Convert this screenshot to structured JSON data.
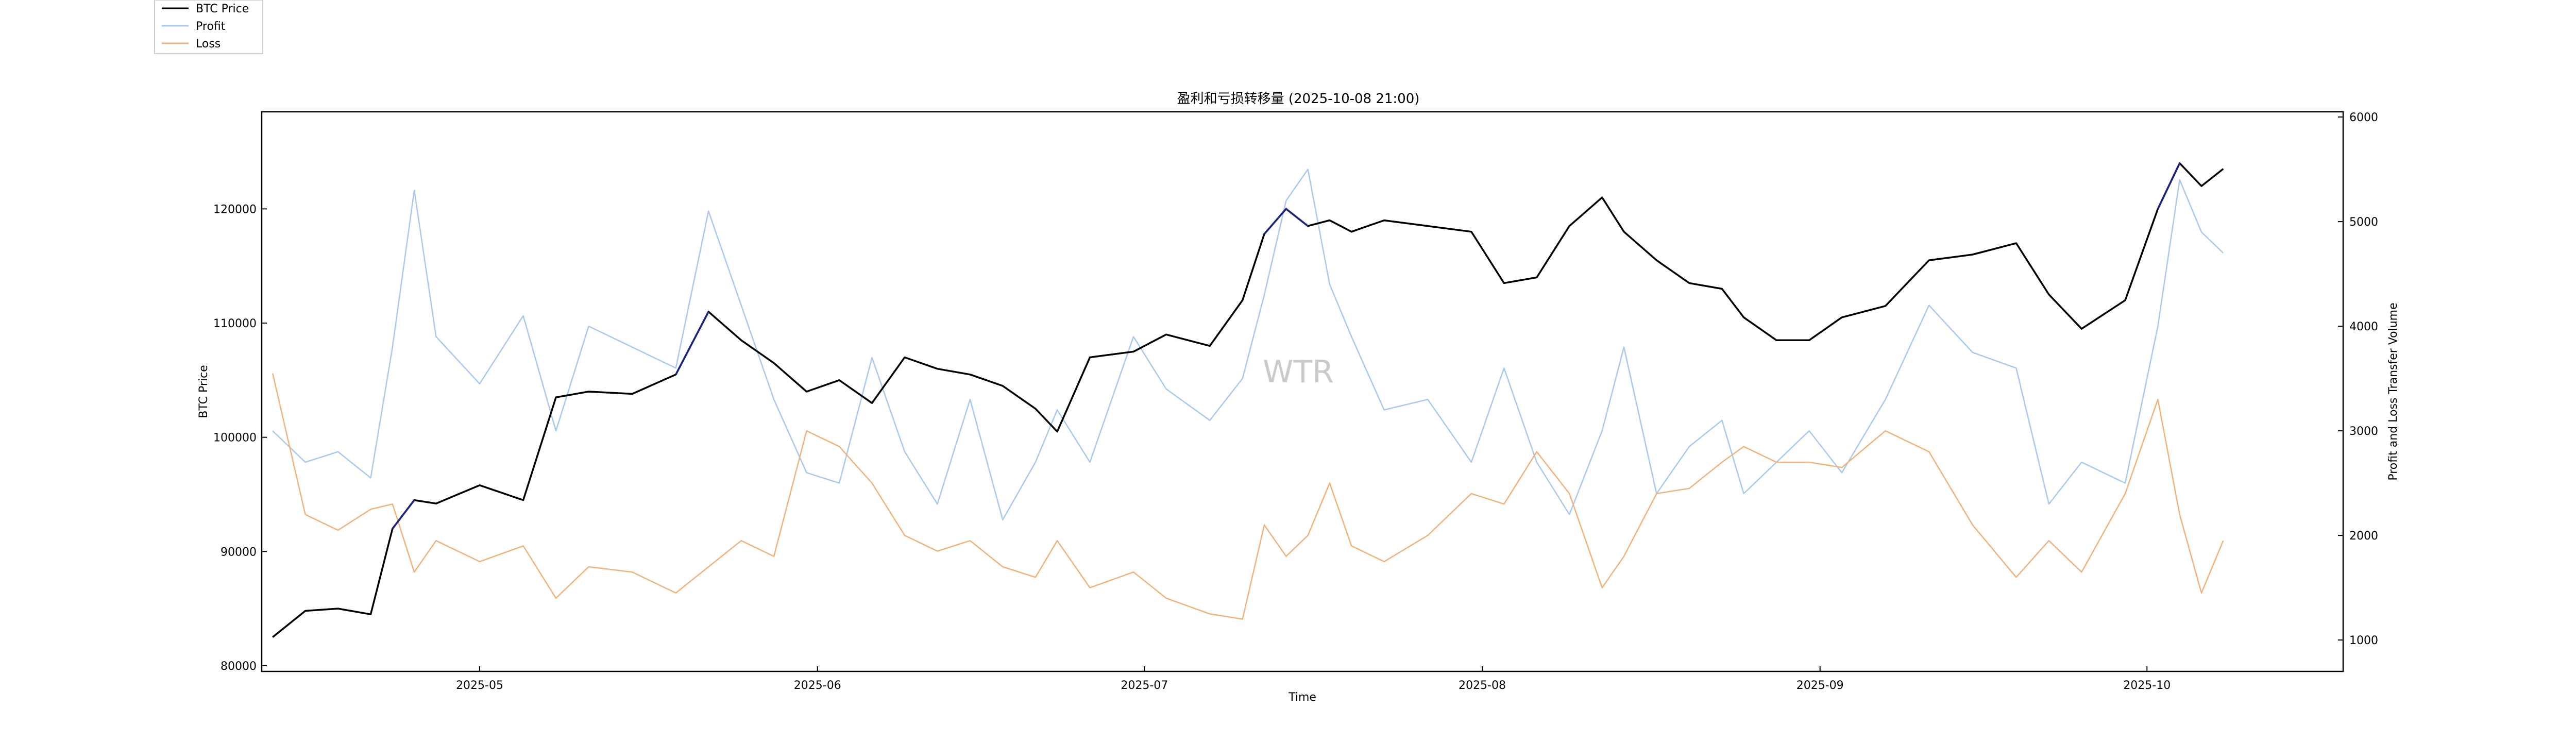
{
  "chart_data": {
    "type": "line",
    "title": "盈利和亏损转移量 (2025-10-08 21:00)",
    "xlabel": "Time",
    "ylabel_left": "BTC Price",
    "ylabel_right": "Profit and Loss Transfer Volume",
    "watermark": "WTR",
    "x_ticks": [
      "2025-05",
      "2025-06",
      "2025-07",
      "2025-08",
      "2025-09",
      "2025-10"
    ],
    "x_range": [
      "2025-04-11",
      "2025-10-19"
    ],
    "ylim_left": [
      79500,
      128500
    ],
    "ylim_right": [
      700,
      6050
    ],
    "y_left_ticks": [
      80000,
      90000,
      100000,
      110000,
      120000
    ],
    "y_right_ticks": [
      1000,
      2000,
      3000,
      4000,
      5000,
      6000
    ],
    "legend": {
      "placement": "top-left outside",
      "entries": [
        "BTC Price",
        "Profit",
        "Loss"
      ]
    },
    "x": [
      "2025-04-12",
      "2025-04-15",
      "2025-04-18",
      "2025-04-21",
      "2025-04-23",
      "2025-04-25",
      "2025-04-27",
      "2025-05-01",
      "2025-05-05",
      "2025-05-08",
      "2025-05-11",
      "2025-05-15",
      "2025-05-19",
      "2025-05-22",
      "2025-05-25",
      "2025-05-28",
      "2025-05-31",
      "2025-06-03",
      "2025-06-06",
      "2025-06-09",
      "2025-06-12",
      "2025-06-15",
      "2025-06-18",
      "2025-06-21",
      "2025-06-23",
      "2025-06-26",
      "2025-06-30",
      "2025-07-03",
      "2025-07-07",
      "2025-07-10",
      "2025-07-12",
      "2025-07-14",
      "2025-07-16",
      "2025-07-18",
      "2025-07-20",
      "2025-07-23",
      "2025-07-27",
      "2025-07-31",
      "2025-08-03",
      "2025-08-06",
      "2025-08-09",
      "2025-08-12",
      "2025-08-14",
      "2025-08-17",
      "2025-08-20",
      "2025-08-23",
      "2025-08-25",
      "2025-08-28",
      "2025-08-31",
      "2025-09-03",
      "2025-09-07",
      "2025-09-11",
      "2025-09-15",
      "2025-09-19",
      "2025-09-22",
      "2025-09-25",
      "2025-09-29",
      "2025-10-02",
      "2025-10-04",
      "2025-10-06",
      "2025-10-08"
    ],
    "series": [
      {
        "name": "BTC Price",
        "axis": "left",
        "color": "#000000",
        "values": [
          82500,
          84800,
          85000,
          84500,
          92000,
          94500,
          94200,
          95800,
          94500,
          103500,
          104000,
          103800,
          105500,
          111000,
          108500,
          106500,
          104000,
          105000,
          103000,
          107000,
          106000,
          105500,
          104500,
          102500,
          100500,
          107000,
          107500,
          109000,
          108000,
          112000,
          117800,
          120000,
          118500,
          119000,
          118000,
          119000,
          118500,
          118000,
          113500,
          114000,
          118500,
          121000,
          118000,
          115500,
          113500,
          113000,
          110500,
          108500,
          108500,
          110500,
          111500,
          115500,
          116000,
          117000,
          112500,
          109500,
          112000,
          120000,
          124000,
          122000,
          123500
        ],
        "highlight_color": "#1a237e"
      },
      {
        "name": "Profit",
        "axis": "right",
        "color": "#a8c8ee",
        "values": [
          3000,
          2700,
          2800,
          2550,
          3800,
          5300,
          3900,
          3450,
          4100,
          3000,
          4000,
          3800,
          3600,
          5100,
          4200,
          3300,
          2600,
          2500,
          3700,
          2800,
          2300,
          3300,
          2150,
          2700,
          3200,
          2700,
          3900,
          3400,
          3100,
          3500,
          4300,
          5200,
          5500,
          4400,
          3900,
          3200,
          3300,
          2700,
          3600,
          2700,
          2200,
          3000,
          3800,
          2400,
          2850,
          3100,
          2400,
          2700,
          3000,
          2600,
          3300,
          4200,
          3750,
          3600,
          2300,
          2700,
          2500,
          4000,
          5400,
          4900,
          4700
        ]
      },
      {
        "name": "Loss",
        "axis": "right",
        "color": "#f0b27a",
        "values": [
          3550,
          2200,
          2050,
          2250,
          2300,
          1650,
          1950,
          1750,
          1900,
          1400,
          1700,
          1650,
          1450,
          1700,
          1950,
          1800,
          3000,
          2850,
          2500,
          2000,
          1850,
          1950,
          1700,
          1600,
          1950,
          1500,
          1650,
          1400,
          1250,
          1200,
          2100,
          1800,
          2000,
          2500,
          1900,
          1750,
          2000,
          2400,
          2300,
          2800,
          2400,
          1500,
          1800,
          2400,
          2450,
          2700,
          2850,
          2700,
          2700,
          2650,
          3000,
          2800,
          2100,
          1600,
          1950,
          1650,
          2400,
          3300,
          2200,
          1450,
          1950
        ]
      }
    ]
  }
}
